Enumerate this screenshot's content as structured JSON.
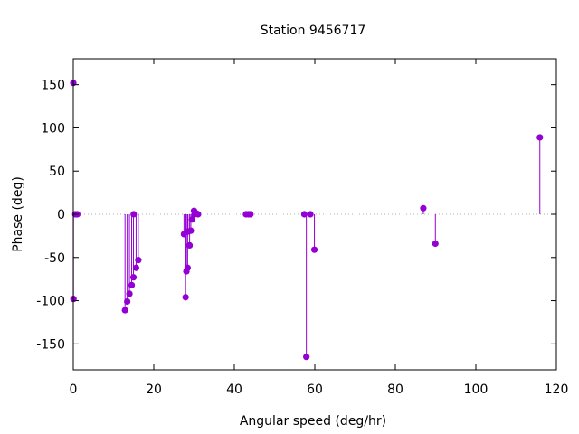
{
  "chart_data": {
    "type": "stem",
    "title": "Station 9456717",
    "xlabel": "Angular speed (deg/hr)",
    "ylabel": "Phase (deg)",
    "xlim": [
      0,
      120
    ],
    "ylim": [
      -180,
      180
    ],
    "xticks": [
      0,
      20,
      40,
      60,
      80,
      100,
      120
    ],
    "yticks": [
      -150,
      -100,
      -50,
      0,
      50,
      100,
      150
    ],
    "zero_line": "dotted",
    "grid": false,
    "series_color": "#9400d3",
    "points": [
      {
        "x": 0.0,
        "y": 152
      },
      {
        "x": 0.04,
        "y": -98
      },
      {
        "x": 0.5,
        "y": 0
      },
      {
        "x": 1.0,
        "y": 0
      },
      {
        "x": 12.85,
        "y": -111
      },
      {
        "x": 13.4,
        "y": -101
      },
      {
        "x": 13.95,
        "y": -92
      },
      {
        "x": 14.5,
        "y": -82
      },
      {
        "x": 14.95,
        "y": -73
      },
      {
        "x": 15.0,
        "y": 0
      },
      {
        "x": 15.6,
        "y": -62
      },
      {
        "x": 16.15,
        "y": -53
      },
      {
        "x": 27.5,
        "y": -23
      },
      {
        "x": 27.9,
        "y": -96
      },
      {
        "x": 28.1,
        "y": -66
      },
      {
        "x": 28.4,
        "y": -62
      },
      {
        "x": 28.5,
        "y": -20
      },
      {
        "x": 28.9,
        "y": -36
      },
      {
        "x": 29.2,
        "y": -19
      },
      {
        "x": 29.5,
        "y": -6
      },
      {
        "x": 30.0,
        "y": 4
      },
      {
        "x": 30.1,
        "y": 0
      },
      {
        "x": 30.6,
        "y": 1
      },
      {
        "x": 31.0,
        "y": 0
      },
      {
        "x": 42.9,
        "y": 0
      },
      {
        "x": 43.5,
        "y": 0
      },
      {
        "x": 44.0,
        "y": 0
      },
      {
        "x": 57.4,
        "y": 0
      },
      {
        "x": 57.9,
        "y": -165
      },
      {
        "x": 58.9,
        "y": 0
      },
      {
        "x": 59.9,
        "y": -41
      },
      {
        "x": 86.95,
        "y": 7
      },
      {
        "x": 89.95,
        "y": -34
      },
      {
        "x": 115.9,
        "y": 89
      }
    ]
  }
}
